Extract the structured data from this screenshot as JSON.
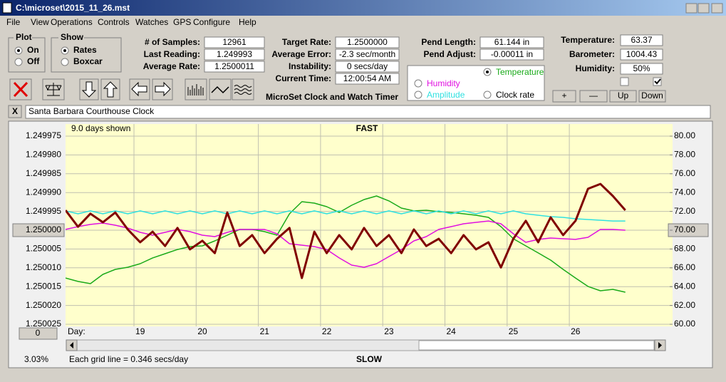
{
  "window": {
    "title": "C:\\microset\\2015_11_26.mst"
  },
  "menu": [
    "File",
    "View",
    "Operations",
    "Controls",
    "Watches",
    "GPS",
    "Configure",
    "Help"
  ],
  "plot_group": {
    "title": "Plot",
    "options": [
      "On",
      "Off"
    ]
  },
  "show_group": {
    "title": "Show",
    "options": [
      "Rates",
      "Boxcar"
    ]
  },
  "readings": [
    {
      "label": "# of Samples:",
      "value": "12961"
    },
    {
      "label": "Last Reading:",
      "value": "1.249993"
    },
    {
      "label": "Average Rate:",
      "value": "1.2500011"
    }
  ],
  "targets": [
    {
      "label": "Target Rate:",
      "value": "1.2500000"
    },
    {
      "label": "Average Error:",
      "value": "-2.3 sec/month"
    },
    {
      "label": "Instability:",
      "value": "0 secs/day"
    },
    {
      "label": "Current Time:",
      "value": "12:00:54 AM"
    }
  ],
  "app_name": "MicroSet Clock and Watch Timer",
  "pendulum": [
    {
      "label": "Pend Length:",
      "value": "61.144 in"
    },
    {
      "label": "Pend Adjust:",
      "value": "-0.00011 in"
    }
  ],
  "sensors": [
    {
      "label": "Temperature:",
      "value": "63.37"
    },
    {
      "label": "Barometer:",
      "value": "1004.43"
    },
    {
      "label": "Humidity:",
      "value": "50%"
    }
  ],
  "sensor_buttons": [
    "+",
    "—",
    "Up",
    "Down"
  ],
  "clock_close": "X",
  "clock_name": "Santa Barbara Courthouse Clock",
  "chart_data": {
    "type": "line",
    "days_shown": "9.0 days shown",
    "top_label": "FAST",
    "bottom_label": "SLOW",
    "x_label": "Day:",
    "offset_box": "0",
    "status": "3.03%",
    "grid_note": "Each grid line = 0.346 secs/day",
    "grid": true,
    "xlim": [
      17.9,
      27.66
    ],
    "xticks": [
      19,
      20,
      21,
      22,
      23,
      24,
      25,
      26
    ],
    "ylim": [
      1.250025,
      1.249975
    ],
    "yticks": [
      1.249975,
      {
        "value": 1.24998,
        "label": "1.249980"
      },
      1.249985,
      {
        "value": 1.24999,
        "label": "1.249990"
      },
      1.249995,
      {
        "value": 1.25,
        "label": "1.250000"
      },
      1.250005,
      {
        "value": 1.25001,
        "label": "1.250010"
      },
      1.250015,
      {
        "value": 1.25002,
        "label": "1.250020"
      },
      1.250025
    ],
    "y2lim": [
      60,
      80
    ],
    "y2ticks": [
      {
        "value": 80,
        "label": "80.00"
      },
      {
        "value": 78,
        "label": "78.00"
      },
      {
        "value": 76,
        "label": "76.00"
      },
      {
        "value": 74,
        "label": "74.00"
      },
      {
        "value": 72,
        "label": "72.00"
      },
      {
        "value": 70,
        "label": "70.00"
      },
      {
        "value": 68,
        "label": "68.00"
      },
      {
        "value": 66,
        "label": "66.00"
      },
      {
        "value": 64,
        "label": "64.00"
      },
      {
        "value": 62,
        "label": "62.00"
      },
      {
        "value": 60,
        "label": "60.00"
      }
    ],
    "x": [
      17.9,
      18.1,
      18.3,
      18.5,
      18.7,
      18.9,
      19.1,
      19.3,
      19.5,
      19.7,
      19.9,
      20.1,
      20.3,
      20.5,
      20.7,
      20.9,
      21.1,
      21.3,
      21.5,
      21.7,
      21.9,
      22.1,
      22.3,
      22.5,
      22.7,
      22.9,
      23.1,
      23.3,
      23.5,
      23.7,
      23.9,
      24.1,
      24.3,
      24.5,
      24.7,
      24.9,
      25.1,
      25.3,
      25.5,
      25.7,
      25.9,
      26.1,
      26.3,
      26.5,
      26.7,
      26.9
    ],
    "series": [
      {
        "name": "Temperature",
        "color": "#1aaa1a",
        "axis": "y2",
        "values": [
          64.92,
          64.55,
          64.32,
          65.3,
          65.83,
          66.06,
          66.44,
          67.05,
          67.5,
          67.95,
          68.26,
          68.33,
          68.86,
          69.47,
          70.08,
          70.08,
          69.85,
          69.47,
          71.74,
          73.03,
          72.88,
          72.5,
          71.89,
          72.65,
          73.26,
          73.64,
          73.11,
          72.35,
          72.05,
          72.12,
          71.97,
          71.89,
          71.74,
          71.59,
          71.36,
          70.38,
          69.09,
          68.33,
          67.58,
          66.82,
          65.83,
          64.92,
          64.02,
          63.56,
          63.71,
          63.41
        ]
      },
      {
        "name": "Humidity",
        "color": "#e010e0",
        "axis": "y2",
        "values": [
          70.08,
          70.38,
          70.61,
          70.76,
          70.53,
          70.23,
          69.77,
          69.47,
          69.77,
          70.08,
          69.85,
          69.47,
          69.32,
          69.77,
          70.08,
          70.08,
          70.08,
          69.62,
          68.56,
          68.41,
          68.26,
          67.95,
          67.05,
          66.29,
          66.06,
          66.44,
          67.2,
          67.95,
          68.86,
          69.32,
          70.08,
          70.38,
          70.68,
          70.83,
          70.98,
          70.68,
          69.62,
          68.71,
          69.02,
          69.17,
          69.09,
          69.02,
          69.24,
          70.08,
          70.08,
          70.0
        ]
      },
      {
        "name": "Amplitude",
        "color": "#30e0e0",
        "axis": "y2",
        "values": [
          72.05,
          71.74,
          72.05,
          71.74,
          72.05,
          71.74,
          72.05,
          71.74,
          72.05,
          71.74,
          72.05,
          71.74,
          72.05,
          71.74,
          72.05,
          71.74,
          72.05,
          71.74,
          72.05,
          71.74,
          72.05,
          71.74,
          72.05,
          71.74,
          72.05,
          71.74,
          72.05,
          71.74,
          72.05,
          71.74,
          72.05,
          71.74,
          72.05,
          71.74,
          72.05,
          71.74,
          72.05,
          71.74,
          71.59,
          71.44,
          71.36,
          71.21,
          71.14,
          71.06,
          70.98,
          70.98
        ]
      },
      {
        "name": "Clock rate",
        "color": "#800000",
        "values": [
          1.2499947,
          1.2499991,
          1.2499956,
          1.2499979,
          1.2499953,
          1.2499998,
          1.2500032,
          1.2500004,
          1.2500042,
          1.2499994,
          1.2500051,
          1.2500028,
          1.2500061,
          1.2499953,
          1.2500042,
          1.2500013,
          1.2500061,
          1.2500023,
          1.2499994,
          1.2500127,
          1.2500004,
          1.2500061,
          1.2500013,
          1.2500051,
          1.2499994,
          1.2500042,
          1.2500013,
          1.2500061,
          1.2499998,
          1.2500042,
          1.2500023,
          1.2500061,
          1.2500013,
          1.2500051,
          1.2500032,
          1.2500099,
          1.2500023,
          1.2499975,
          1.2500032,
          1.2499966,
          1.2500013,
          1.2499975,
          1.249989,
          1.2499877,
          1.2499909,
          1.2499947
        ]
      }
    ]
  }
}
